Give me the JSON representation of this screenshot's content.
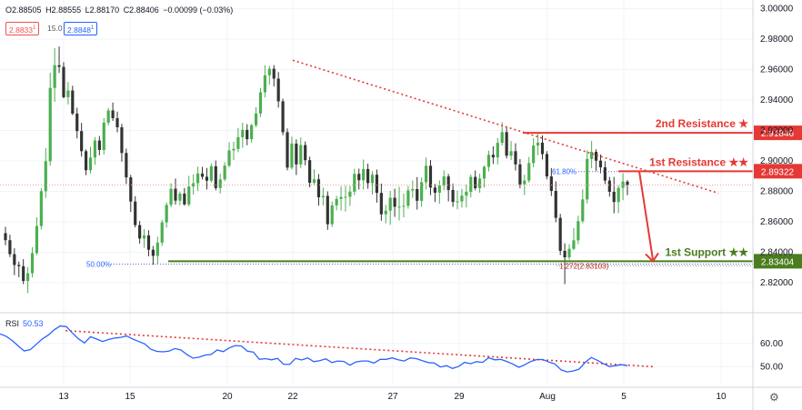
{
  "ohlc": {
    "o": "O2.88505",
    "h": "H2.88555",
    "l": "L2.88170",
    "c": "C2.88406",
    "chg": "−0.00099 (−0.03%)"
  },
  "chips": {
    "bid": "2.8833",
    "bid_sup": "1",
    "vol": "15.0",
    "ask": "2.8848",
    "ask_sup": "1"
  },
  "colors": {
    "up": "#4caf50",
    "down": "#333333",
    "resistance": "#e53935",
    "support": "#4a7d1e",
    "rsi": "#2962ff",
    "trend": "#e53935"
  },
  "chart_data": {
    "type": "candlestick",
    "price_axis": {
      "ticks": [
        "3.00000",
        "2.98000",
        "2.96000",
        "2.94000",
        "2.92000",
        "2.90000",
        "2.88000",
        "2.86000",
        "2.84000",
        "2.82000"
      ],
      "range": [
        2.802,
        3.001
      ]
    },
    "time_axis": {
      "ticks": [
        "13",
        "15",
        "20",
        "22",
        "27",
        "29",
        "Aug",
        "5",
        "10"
      ]
    },
    "last_price": "2.88406",
    "levels": [
      {
        "label": "2nd Resistance ★",
        "value": 2.91846,
        "tag": "2.91846",
        "kind": "resistance"
      },
      {
        "label": "1st Resistance ★★",
        "value": 2.89322,
        "tag": "2.89322",
        "kind": "resistance"
      },
      {
        "label": "1st Support ★★",
        "value": 2.83404,
        "tag": "2.83404",
        "kind": "support"
      }
    ],
    "fib_labels": {
      "f618": "61.80%",
      "f50": "50.00%",
      "f1272": "1.272(2.83103)"
    },
    "ohlc_series": [
      [
        2.8525,
        2.8567,
        2.8446,
        2.8479
      ],
      [
        2.8479,
        2.8515,
        2.8368,
        2.8387
      ],
      [
        2.8387,
        2.8426,
        2.8249,
        2.8316
      ],
      [
        2.8316,
        2.8339,
        2.8236,
        2.8308
      ],
      [
        2.8308,
        2.8354,
        2.819,
        2.8211
      ],
      [
        2.8211,
        2.8302,
        2.8131,
        2.8262
      ],
      [
        2.8262,
        2.8433,
        2.8235,
        2.8394
      ],
      [
        2.8394,
        2.863,
        2.8381,
        2.8572
      ],
      [
        2.8572,
        2.8821,
        2.8549,
        2.8801
      ],
      [
        2.8801,
        2.9084,
        2.8757,
        2.8998
      ],
      [
        2.8998,
        2.958,
        2.8968,
        2.948
      ],
      [
        2.948,
        2.9741,
        2.9389,
        2.9629
      ],
      [
        2.9629,
        2.9752,
        2.9578,
        2.9618
      ],
      [
        2.9618,
        2.9649,
        2.9411,
        2.9419
      ],
      [
        2.9419,
        2.9519,
        2.9371,
        2.9463
      ],
      [
        2.9463,
        2.9494,
        2.9301,
        2.9311
      ],
      [
        2.9311,
        2.935,
        2.9148,
        2.9196
      ],
      [
        2.9196,
        2.925,
        2.9028,
        2.9064
      ],
      [
        2.9064,
        2.9076,
        2.8906,
        2.8939
      ],
      [
        2.8939,
        2.9093,
        2.8919,
        2.9022
      ],
      [
        2.9022,
        2.9157,
        2.8974,
        2.9134
      ],
      [
        2.9134,
        2.9164,
        2.9037,
        2.9072
      ],
      [
        2.9072,
        2.9281,
        2.9042,
        2.9251
      ],
      [
        2.9251,
        2.9349,
        2.9233,
        2.9332
      ],
      [
        2.9332,
        2.9384,
        2.9263,
        2.9281
      ],
      [
        2.9281,
        2.9324,
        2.9188,
        2.9221
      ],
      [
        2.9221,
        2.9244,
        2.8995,
        2.9052
      ],
      [
        2.9052,
        2.9081,
        2.8848,
        2.8892
      ],
      [
        2.8892,
        2.8908,
        2.8665,
        2.8733
      ],
      [
        2.8733,
        2.8768,
        2.8563,
        2.8578
      ],
      [
        2.8578,
        2.8605,
        2.8457,
        2.849
      ],
      [
        2.849,
        2.8552,
        2.8429,
        2.851
      ],
      [
        2.851,
        2.8544,
        2.8373,
        2.8416
      ],
      [
        2.8416,
        2.8441,
        2.8318,
        2.8376
      ],
      [
        2.8376,
        2.8502,
        2.832,
        2.8463
      ],
      [
        2.8463,
        2.8613,
        2.8441,
        2.8596
      ],
      [
        2.8596,
        2.8727,
        2.8562,
        2.8711
      ],
      [
        2.8711,
        2.8853,
        2.8695,
        2.8817
      ],
      [
        2.8817,
        2.8884,
        2.8713,
        2.8739
      ],
      [
        2.8739,
        2.8798,
        2.8708,
        2.8785
      ],
      [
        2.8785,
        2.8822,
        2.8706,
        2.8714
      ],
      [
        2.8714,
        2.8902,
        2.8701,
        2.8832
      ],
      [
        2.8832,
        2.8912,
        2.8778,
        2.8853
      ],
      [
        2.8853,
        2.8962,
        2.8802,
        2.8917
      ],
      [
        2.8917,
        2.8961,
        2.8878,
        2.8896
      ],
      [
        2.8896,
        2.8954,
        2.8812,
        2.887
      ],
      [
        2.887,
        2.8983,
        2.8857,
        2.8965
      ],
      [
        2.8965,
        2.9003,
        2.8807,
        2.8822
      ],
      [
        2.8822,
        2.8916,
        2.8786,
        2.8879
      ],
      [
        2.8879,
        2.8991,
        2.8867,
        2.8969
      ],
      [
        2.8969,
        2.9123,
        2.8957,
        2.9069
      ],
      [
        2.9069,
        2.9126,
        2.9006,
        2.9079
      ],
      [
        2.9079,
        2.9217,
        2.9057,
        2.9156
      ],
      [
        2.9156,
        2.9251,
        2.9086,
        2.9204
      ],
      [
        2.9204,
        2.9242,
        2.9103,
        2.9143
      ],
      [
        2.9143,
        2.9243,
        2.912,
        2.9235
      ],
      [
        2.9235,
        2.9353,
        2.9221,
        2.9312
      ],
      [
        2.9312,
        2.9479,
        2.9289,
        2.9451
      ],
      [
        2.9451,
        2.9629,
        2.9417,
        2.9563
      ],
      [
        2.9563,
        2.9625,
        2.9501,
        2.9606
      ],
      [
        2.9606,
        2.963,
        2.9489,
        2.9541
      ],
      [
        2.9541,
        2.9584,
        2.9351,
        2.9392
      ],
      [
        2.9392,
        2.9409,
        2.9169,
        2.9189
      ],
      [
        2.9189,
        2.9213,
        2.8938,
        2.8956
      ],
      [
        2.8956,
        2.9159,
        2.8944,
        2.9114
      ],
      [
        2.9114,
        2.9142,
        2.8907,
        2.8977
      ],
      [
        2.8977,
        2.9154,
        2.8954,
        2.9104
      ],
      [
        2.9104,
        2.9128,
        2.8971,
        2.9005
      ],
      [
        2.9005,
        2.9028,
        2.8827,
        2.8856
      ],
      [
        2.8856,
        2.8945,
        2.8839,
        2.8879
      ],
      [
        2.8879,
        2.8913,
        2.8706,
        2.8761
      ],
      [
        2.8761,
        2.8824,
        2.8708,
        2.877
      ],
      [
        2.877,
        2.88,
        2.8547,
        2.8584
      ],
      [
        2.8584,
        2.8734,
        2.8566,
        2.8708
      ],
      [
        2.8708,
        2.8771,
        2.8675,
        2.875
      ],
      [
        2.875,
        2.8833,
        2.8674,
        2.8763
      ],
      [
        2.8763,
        2.8837,
        2.8667,
        2.8764
      ],
      [
        2.8764,
        2.8835,
        2.8704,
        2.8798
      ],
      [
        2.8798,
        2.8949,
        2.8775,
        2.8915
      ],
      [
        2.8915,
        2.8949,
        2.8812,
        2.8873
      ],
      [
        2.8873,
        2.9009,
        2.8812,
        2.8947
      ],
      [
        2.8947,
        2.8982,
        2.8817,
        2.8854
      ],
      [
        2.8854,
        2.8932,
        2.8778,
        2.8909
      ],
      [
        2.8909,
        2.8943,
        2.8726,
        2.879
      ],
      [
        2.879,
        2.8851,
        2.8607,
        2.8649
      ],
      [
        2.8649,
        2.8711,
        2.859,
        2.8673
      ],
      [
        2.8673,
        2.8803,
        2.858,
        2.8758
      ],
      [
        2.8758,
        2.8817,
        2.8632,
        2.8699
      ],
      [
        2.8699,
        2.883,
        2.8609,
        2.8699
      ],
      [
        2.8699,
        2.8785,
        2.8629,
        2.8705
      ],
      [
        2.8705,
        2.8835,
        2.8686,
        2.8806
      ],
      [
        2.8806,
        2.8871,
        2.8757,
        2.8815
      ],
      [
        2.8815,
        2.8894,
        2.868,
        2.8738
      ],
      [
        2.8738,
        2.8891,
        2.8698,
        2.886
      ],
      [
        2.886,
        2.9022,
        2.8812,
        2.8968
      ],
      [
        2.8968,
        2.9006,
        2.8775,
        2.8825
      ],
      [
        2.8825,
        2.8848,
        2.873,
        2.8791
      ],
      [
        2.8791,
        2.8872,
        2.8719,
        2.884
      ],
      [
        2.884,
        2.8938,
        2.8807,
        2.8898
      ],
      [
        2.8898,
        2.8915,
        2.8734,
        2.8809
      ],
      [
        2.8809,
        2.8851,
        2.8698,
        2.873
      ],
      [
        2.873,
        2.8805,
        2.8682,
        2.8734
      ],
      [
        2.8734,
        2.8816,
        2.8694,
        2.8772
      ],
      [
        2.8772,
        2.8845,
        2.8694,
        2.8797
      ],
      [
        2.8797,
        2.8911,
        2.876,
        2.8895
      ],
      [
        2.8895,
        2.8937,
        2.8807,
        2.8821
      ],
      [
        2.8821,
        2.8916,
        2.8791,
        2.8884
      ],
      [
        2.8884,
        2.897,
        2.8824,
        2.8961
      ],
      [
        2.8961,
        2.9068,
        2.8931,
        2.904
      ],
      [
        2.904,
        2.9096,
        2.898,
        2.9023
      ],
      [
        2.9023,
        2.915,
        2.8977,
        2.9119
      ],
      [
        2.9119,
        2.9255,
        2.9101,
        2.9189
      ],
      [
        2.9189,
        2.9225,
        2.9016,
        2.9034
      ],
      [
        2.9034,
        2.9131,
        2.9006,
        2.9064
      ],
      [
        2.9064,
        2.9116,
        2.8937,
        2.8977
      ],
      [
        2.8977,
        2.9012,
        2.882,
        2.8846
      ],
      [
        2.8846,
        2.8909,
        2.8776,
        2.8871
      ],
      [
        2.8871,
        2.9026,
        2.8857,
        2.8986
      ],
      [
        2.8986,
        2.9149,
        2.8958,
        2.9101
      ],
      [
        2.9101,
        2.9179,
        2.9037,
        2.912
      ],
      [
        2.912,
        2.9167,
        2.901,
        2.9045
      ],
      [
        2.9045,
        2.9064,
        2.8879,
        2.8898
      ],
      [
        2.8898,
        2.8953,
        2.877,
        2.8803
      ],
      [
        2.8803,
        2.8866,
        2.8597,
        2.8626
      ],
      [
        2.8626,
        2.8652,
        2.8381,
        2.8409
      ],
      [
        2.8409,
        2.8458,
        2.819,
        2.8366
      ],
      [
        2.8366,
        2.8453,
        2.835,
        2.8422
      ],
      [
        2.8422,
        2.8558,
        2.8413,
        2.8478
      ],
      [
        2.8478,
        2.864,
        2.8453,
        2.8604
      ],
      [
        2.8604,
        2.8813,
        2.859,
        2.8747
      ],
      [
        2.8747,
        2.9071,
        2.872,
        2.9013
      ],
      [
        2.9013,
        2.9131,
        2.8951,
        2.906
      ],
      [
        2.906,
        2.9076,
        2.8935,
        2.9002
      ],
      [
        2.9002,
        2.9042,
        2.8919,
        2.8958
      ],
      [
        2.8958,
        2.8998,
        2.8848,
        2.8871
      ],
      [
        2.8871,
        2.8895,
        2.8765,
        2.8797
      ],
      [
        2.8797,
        2.8895,
        2.8656,
        2.873
      ],
      [
        2.873,
        2.884,
        2.8657,
        2.8823
      ],
      [
        2.8823,
        2.8919,
        2.8742,
        2.8864
      ],
      [
        2.8864,
        2.8874,
        2.8775,
        2.8841
      ]
    ],
    "rsi": {
      "label": "RSI",
      "value": "50.53",
      "ticks": [
        "60.00",
        "50.00"
      ],
      "range": [
        42,
        72
      ],
      "values": [
        64.1,
        63.1,
        61.3,
        59.0,
        56.8,
        57.3,
        59.6,
        61.9,
        63.6,
        65.9,
        67.5,
        67.2,
        64.5,
        62.0,
        60.2,
        62.9,
        61.9,
        60.8,
        61.7,
        62.3,
        62.6,
        63.2,
        61.9,
        60.8,
        59.8,
        57.5,
        56.6,
        56.4,
        56.7,
        57.8,
        57.2,
        55.2,
        53.7,
        54.1,
        55.0,
        55.3,
        57.2,
        56.5,
        58.1,
        59.1,
        58.9,
        56.7,
        56.3,
        53.2,
        53.5,
        53.0,
        53.6,
        51.1,
        51.0,
        53.6,
        52.9,
        53.8,
        52.2,
        52.6,
        53.4,
        51.8,
        52.5,
        52.3,
        50.7,
        52.1,
        52.5,
        52.5,
        51.6,
        53.2,
        53.2,
        53.8,
        53.0,
        52.5,
        53.8,
        53.5,
        52.6,
        51.8,
        51.6,
        49.9,
        50.5,
        49.3,
        50.1,
        51.9,
        51.3,
        52.2,
        51.9,
        53.9,
        53.0,
        53.2,
        52.3,
        51.2,
        49.8,
        50.9,
        52.3,
        53.1,
        53.1,
        52.0,
        51.2,
        48.7,
        47.8,
        48.2,
        49.0,
        51.9,
        54.0,
        52.8,
        51.4,
        50.1,
        50.5,
        50.9,
        50.5
      ]
    }
  }
}
